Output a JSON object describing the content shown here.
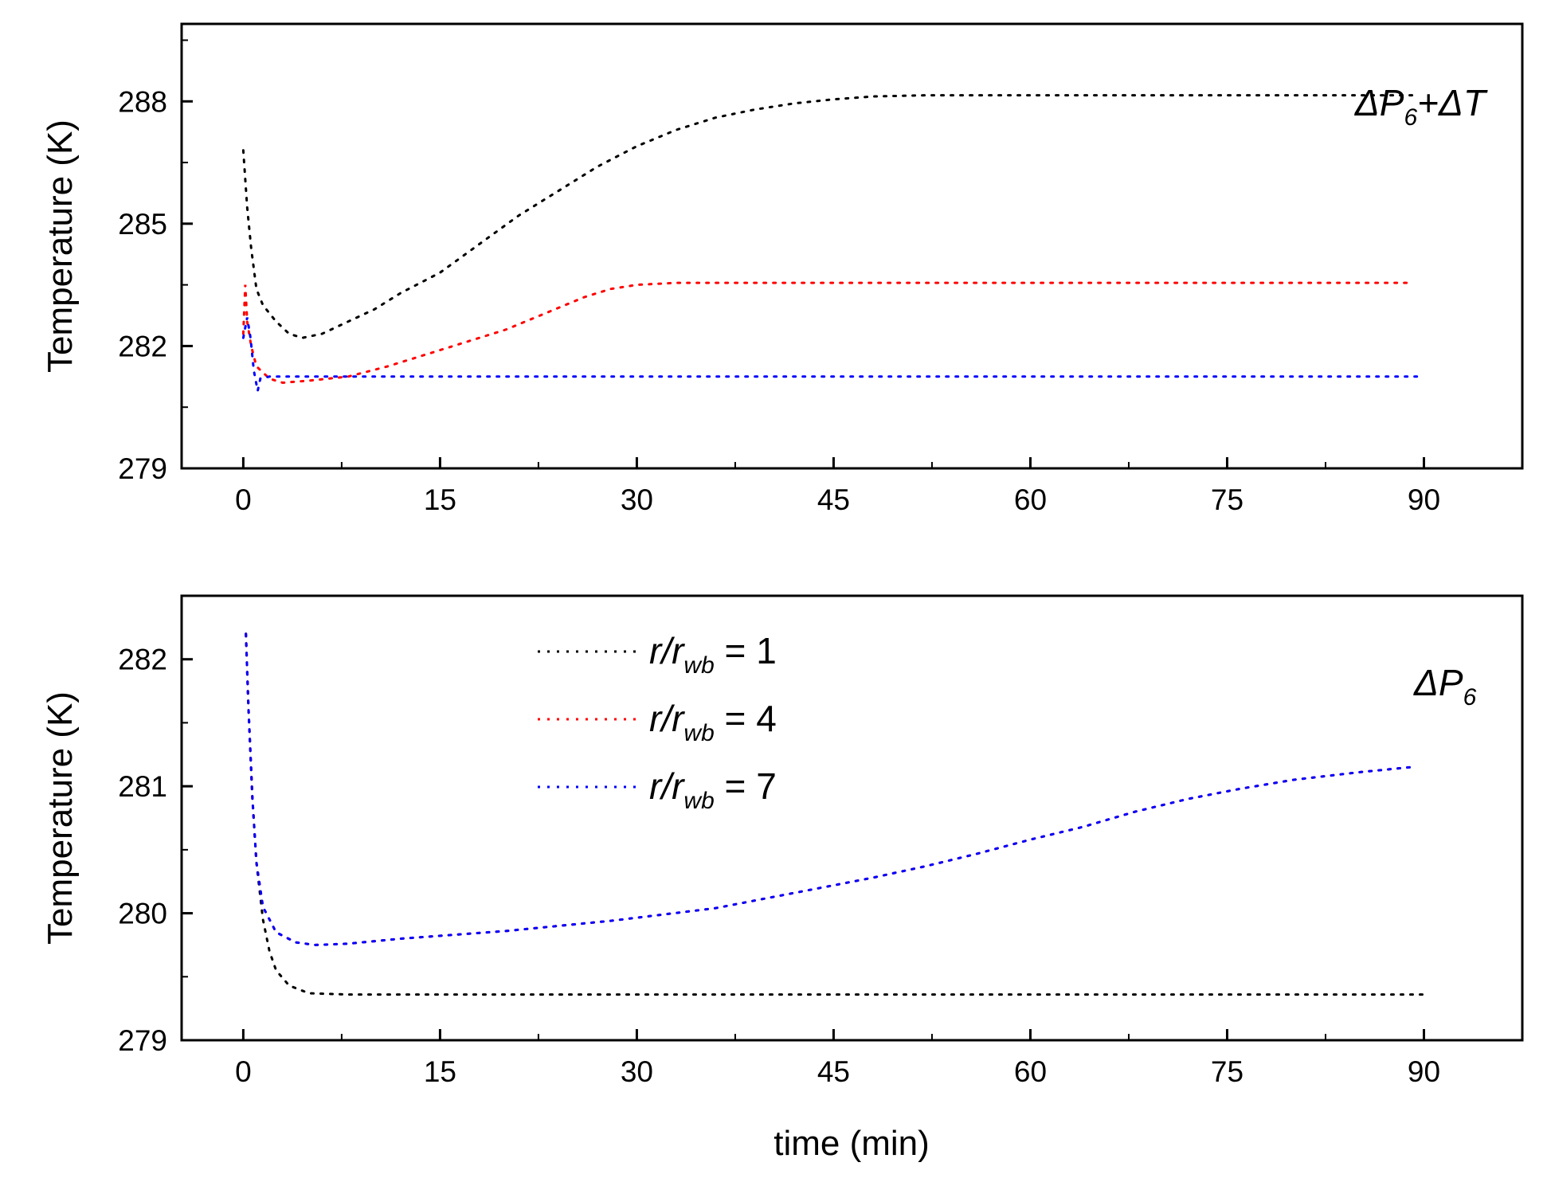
{
  "chart_data": [
    {
      "type": "line",
      "panel": "top",
      "annotation": "ΔP6+ΔT",
      "ylabel": "Temperature (K)",
      "xlabel": "",
      "xlim": [
        -4.7,
        97.5
      ],
      "ylim": [
        279,
        289.9
      ],
      "xticks": [
        0,
        15,
        30,
        45,
        60,
        75,
        90
      ],
      "yticks": [
        279,
        282,
        285,
        288
      ],
      "grid": false,
      "series": [
        {
          "name": "r/rwb = 1",
          "color": "#000000",
          "points": [
            [
              0,
              286.8
            ],
            [
              0.3,
              285.4
            ],
            [
              0.6,
              284.4
            ],
            [
              1,
              283.4
            ],
            [
              1.5,
              283.0
            ],
            [
              2.5,
              282.6
            ],
            [
              3.5,
              282.3
            ],
            [
              4.5,
              282.2
            ],
            [
              6,
              282.3
            ],
            [
              8,
              282.6
            ],
            [
              10,
              282.9
            ],
            [
              12,
              283.3
            ],
            [
              15,
              283.8
            ],
            [
              18,
              284.5
            ],
            [
              21,
              285.2
            ],
            [
              24,
              285.8
            ],
            [
              27,
              286.4
            ],
            [
              30,
              286.9
            ],
            [
              33,
              287.3
            ],
            [
              36,
              287.6
            ],
            [
              39,
              287.8
            ],
            [
              42,
              287.95
            ],
            [
              45,
              288.05
            ],
            [
              48,
              288.12
            ],
            [
              52,
              288.15
            ],
            [
              60,
              288.15
            ],
            [
              75,
              288.15
            ],
            [
              89.5,
              288.15
            ]
          ]
        },
        {
          "name": "r/rwb = 4",
          "color": "#ff0000",
          "points": [
            [
              0,
              282.3
            ],
            [
              0.15,
              283.5
            ],
            [
              0.3,
              282.6
            ],
            [
              0.6,
              282.0
            ],
            [
              1,
              281.5
            ],
            [
              2,
              281.2
            ],
            [
              3,
              281.1
            ],
            [
              5,
              281.15
            ],
            [
              8,
              281.25
            ],
            [
              11,
              281.5
            ],
            [
              14,
              281.8
            ],
            [
              17,
              282.1
            ],
            [
              20,
              282.4
            ],
            [
              23,
              282.8
            ],
            [
              26,
              283.2
            ],
            [
              28,
              283.4
            ],
            [
              30,
              283.5
            ],
            [
              33,
              283.55
            ],
            [
              40,
              283.55
            ],
            [
              60,
              283.55
            ],
            [
              75,
              283.55
            ],
            [
              89,
              283.55
            ]
          ]
        },
        {
          "name": "r/rwb = 7",
          "color": "#0000ff",
          "points": [
            [
              0,
              282.2
            ],
            [
              0.3,
              282.7
            ],
            [
              0.55,
              282.2
            ],
            [
              0.8,
              281.4
            ],
            [
              1.1,
              280.9
            ],
            [
              1.3,
              281.2
            ],
            [
              2,
              281.25
            ],
            [
              4,
              281.25
            ],
            [
              10,
              281.25
            ],
            [
              30,
              281.25
            ],
            [
              60,
              281.25
            ],
            [
              90,
              281.25
            ]
          ]
        }
      ]
    },
    {
      "type": "line",
      "panel": "bottom",
      "annotation": "ΔP6",
      "ylabel": "Temperature (K)",
      "xlabel": "time (min)",
      "xlim": [
        -4.7,
        97.5
      ],
      "ylim": [
        279,
        282.5
      ],
      "xticks": [
        0,
        15,
        30,
        45,
        60,
        75,
        90
      ],
      "yticks": [
        279,
        280,
        281,
        282
      ],
      "grid": false,
      "legend_position": "top-center",
      "series": [
        {
          "name": "r/rwb = 1",
          "color": "#000000",
          "points": [
            [
              0.2,
              282.2
            ],
            [
              0.4,
              281.6
            ],
            [
              0.7,
              280.9
            ],
            [
              1,
              280.4
            ],
            [
              1.5,
              279.95
            ],
            [
              2,
              279.7
            ],
            [
              2.5,
              279.55
            ],
            [
              3.5,
              279.43
            ],
            [
              5,
              279.37
            ],
            [
              8,
              279.36
            ],
            [
              20,
              279.36
            ],
            [
              45,
              279.36
            ],
            [
              70,
              279.36
            ],
            [
              90,
              279.36
            ]
          ]
        },
        {
          "name": "r/rwb = 4",
          "color": "#ff0000",
          "points": [
            [
              0.2,
              282.2
            ],
            [
              0.4,
              281.6
            ],
            [
              0.7,
              280.9
            ],
            [
              1,
              280.4
            ],
            [
              1.5,
              280.05
            ],
            [
              2.5,
              279.85
            ],
            [
              4,
              279.77
            ],
            [
              5.5,
              279.75
            ],
            [
              8,
              279.76
            ],
            [
              12,
              279.8
            ],
            [
              16,
              279.83
            ],
            [
              20,
              279.86
            ],
            [
              24,
              279.9
            ],
            [
              28,
              279.94
            ],
            [
              32,
              279.99
            ],
            [
              36,
              280.04
            ],
            [
              40,
              280.12
            ],
            [
              44,
              280.2
            ],
            [
              48,
              280.28
            ],
            [
              52,
              280.37
            ],
            [
              56,
              280.47
            ],
            [
              60,
              280.58
            ],
            [
              64,
              280.68
            ],
            [
              68,
              280.8
            ],
            [
              72,
              280.9
            ],
            [
              76,
              280.98
            ],
            [
              80,
              281.05
            ],
            [
              85,
              281.11
            ],
            [
              89,
              281.15
            ]
          ]
        },
        {
          "name": "r/rwb = 7",
          "color": "#0000ff",
          "points": [
            [
              0.2,
              282.2
            ],
            [
              0.4,
              281.6
            ],
            [
              0.7,
              280.9
            ],
            [
              1,
              280.4
            ],
            [
              1.5,
              280.05
            ],
            [
              2.5,
              279.85
            ],
            [
              4,
              279.77
            ],
            [
              5.5,
              279.75
            ],
            [
              8,
              279.76
            ],
            [
              12,
              279.8
            ],
            [
              16,
              279.83
            ],
            [
              20,
              279.86
            ],
            [
              24,
              279.9
            ],
            [
              28,
              279.94
            ],
            [
              32,
              279.99
            ],
            [
              36,
              280.04
            ],
            [
              40,
              280.12
            ],
            [
              44,
              280.2
            ],
            [
              48,
              280.28
            ],
            [
              52,
              280.37
            ],
            [
              56,
              280.47
            ],
            [
              60,
              280.58
            ],
            [
              64,
              280.68
            ],
            [
              68,
              280.8
            ],
            [
              72,
              280.9
            ],
            [
              76,
              280.98
            ],
            [
              80,
              281.05
            ],
            [
              85,
              281.11
            ],
            [
              89,
              281.15
            ]
          ]
        }
      ]
    }
  ],
  "legend": {
    "entries": [
      {
        "prefix": "r/r",
        "sub": "wb",
        "suffix": " = 1",
        "color": "#000000"
      },
      {
        "prefix": "r/r",
        "sub": "wb",
        "suffix": " = 4",
        "color": "#ff0000"
      },
      {
        "prefix": "r/r",
        "sub": "wb",
        "suffix": " = 7",
        "color": "#0000ff"
      }
    ]
  },
  "annotations": {
    "top": {
      "delta1": "Δ",
      "p": "P",
      "sub": "6",
      "plus": "+",
      "delta2": "Δ",
      "t": "T"
    },
    "bottom": {
      "delta1": "Δ",
      "p": "P",
      "sub": "6"
    }
  },
  "labels": {
    "top_ylabel": "Temperature (K)",
    "bottom_ylabel": "Temperature (K)",
    "xlabel": "time (min)"
  }
}
